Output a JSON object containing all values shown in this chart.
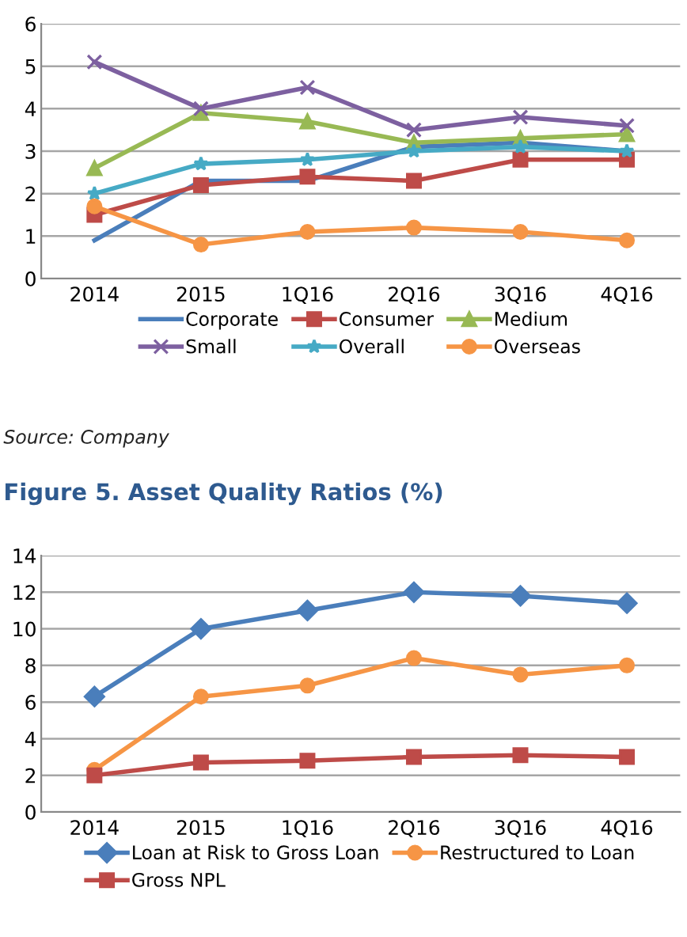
{
  "chart_data": [
    {
      "type": "line",
      "categories": [
        "2014",
        "2015",
        "1Q16",
        "2Q16",
        "3Q16",
        "4Q16"
      ],
      "ylim": [
        0,
        6
      ],
      "yticks": [
        0,
        1,
        2,
        3,
        4,
        5,
        6
      ],
      "grid": "y",
      "legend": "bottom",
      "series": [
        {
          "name": "Corporate",
          "color": "#4a7ebb",
          "marker": "none",
          "values": [
            0.9,
            2.3,
            2.3,
            3.1,
            3.2,
            3.0
          ]
        },
        {
          "name": "Consumer",
          "color": "#be4b48",
          "marker": "square",
          "values": [
            1.5,
            2.2,
            2.4,
            2.3,
            2.8,
            2.8
          ]
        },
        {
          "name": "Medium",
          "color": "#98b954",
          "marker": "triangle",
          "values": [
            2.6,
            3.9,
            3.7,
            3.2,
            3.3,
            3.4
          ]
        },
        {
          "name": "Small",
          "color": "#7d60a0",
          "marker": "cross",
          "values": [
            5.1,
            4.0,
            4.5,
            3.5,
            3.8,
            3.6
          ]
        },
        {
          "name": "Overall",
          "color": "#46aac5",
          "marker": "star",
          "values": [
            2.0,
            2.7,
            2.8,
            3.0,
            3.1,
            3.0
          ]
        },
        {
          "name": "Overseas",
          "color": "#f69545",
          "marker": "circle",
          "values": [
            1.7,
            0.8,
            1.1,
            1.2,
            1.1,
            0.9
          ]
        }
      ],
      "annotations": [
        "Source: Company"
      ]
    },
    {
      "type": "line",
      "title": "Figure 5. Asset Quality Ratios (%)",
      "categories": [
        "2014",
        "2015",
        "1Q16",
        "2Q16",
        "3Q16",
        "4Q16"
      ],
      "ylim": [
        0,
        14
      ],
      "yticks": [
        0,
        2,
        4,
        6,
        8,
        10,
        12,
        14
      ],
      "grid": "y",
      "legend": "bottom",
      "series": [
        {
          "name": "Loan at Risk to Gross Loan",
          "color": "#4a7ebb",
          "marker": "diamond",
          "values": [
            6.3,
            10.0,
            11.0,
            12.0,
            11.8,
            11.4
          ]
        },
        {
          "name": "Restructured to Loan",
          "color": "#f69545",
          "marker": "circle",
          "values": [
            2.3,
            6.3,
            6.9,
            8.4,
            7.5,
            8.0
          ]
        },
        {
          "name": "Gross NPL",
          "color": "#be4b48",
          "marker": "square",
          "values": [
            2.0,
            2.7,
            2.8,
            3.0,
            3.1,
            3.0
          ]
        }
      ]
    }
  ]
}
